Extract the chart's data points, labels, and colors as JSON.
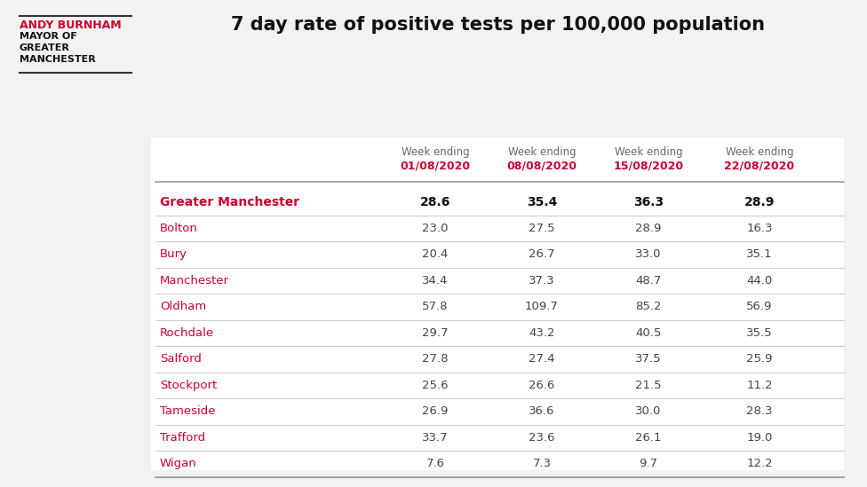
{
  "title": "7 day rate of positive tests per 100,000 population",
  "background_color": "#f2f2f2",
  "table_bg": "#ffffff",
  "header_label": "Week ending",
  "weeks": [
    "01/08/2020",
    "08/08/2020",
    "15/08/2020",
    "22/08/2020"
  ],
  "rows": [
    {
      "area": "Greater Manchester",
      "values": [
        28.6,
        35.4,
        36.3,
        28.9
      ],
      "bold": true
    },
    {
      "area": "Bolton",
      "values": [
        23.0,
        27.5,
        28.9,
        16.3
      ],
      "bold": false
    },
    {
      "area": "Bury",
      "values": [
        20.4,
        26.7,
        33.0,
        35.1
      ],
      "bold": false
    },
    {
      "area": "Manchester",
      "values": [
        34.4,
        37.3,
        48.7,
        44.0
      ],
      "bold": false
    },
    {
      "area": "Oldham",
      "values": [
        57.8,
        109.7,
        85.2,
        56.9
      ],
      "bold": false
    },
    {
      "area": "Rochdale",
      "values": [
        29.7,
        43.2,
        40.5,
        35.5
      ],
      "bold": false
    },
    {
      "area": "Salford",
      "values": [
        27.8,
        27.4,
        37.5,
        25.9
      ],
      "bold": false
    },
    {
      "area": "Stockport",
      "values": [
        25.6,
        26.6,
        21.5,
        11.2
      ],
      "bold": false
    },
    {
      "area": "Tameside",
      "values": [
        26.9,
        36.6,
        30.0,
        28.3
      ],
      "bold": false
    },
    {
      "area": "Trafford",
      "values": [
        33.7,
        23.6,
        26.1,
        19.0
      ],
      "bold": false
    },
    {
      "area": "Wigan",
      "values": [
        7.6,
        7.3,
        9.7,
        12.2
      ],
      "bold": false
    }
  ],
  "area_color": "#cc0033",
  "week_date_color": "#cc0033",
  "week_label_color": "#666666",
  "value_color_bold": "#111111",
  "value_color_normal": "#444444",
  "logo_name_color": "#cc0033",
  "logo_title_color": "#111111",
  "divider_color": "#cccccc",
  "header_divider_color": "#999999",
  "logo_line_color": "#333333"
}
